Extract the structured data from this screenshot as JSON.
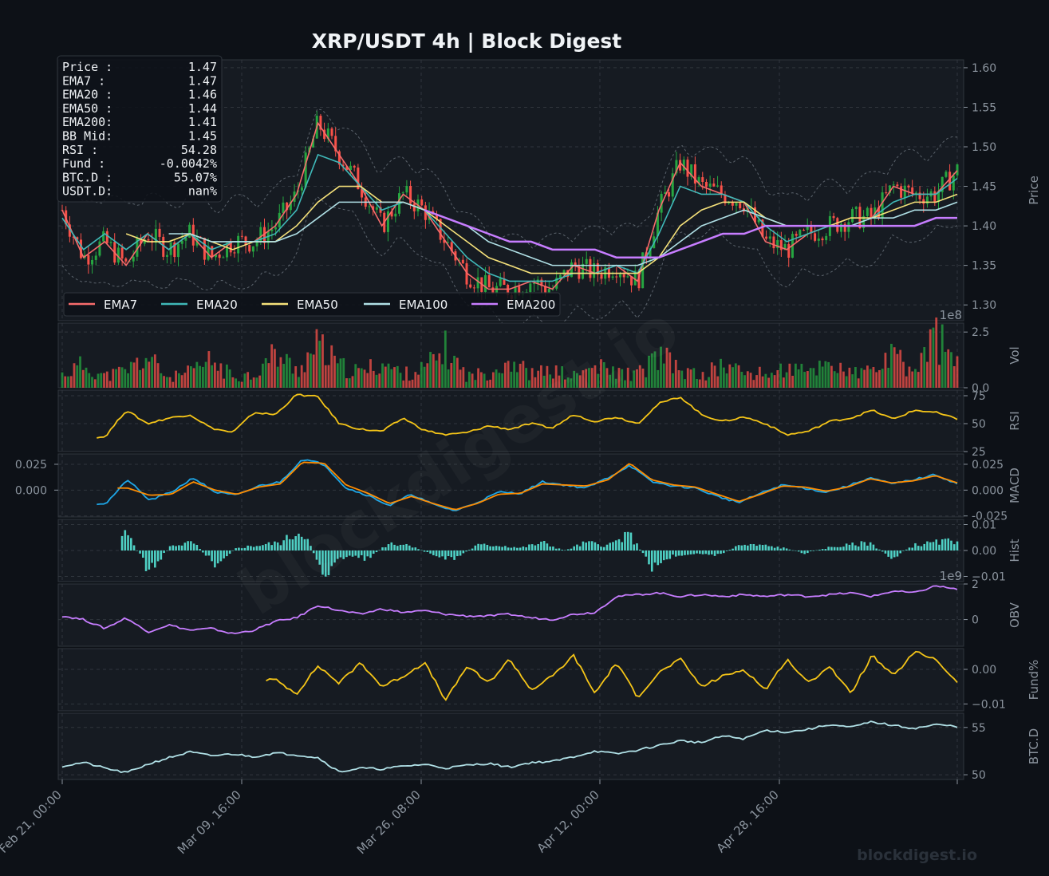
{
  "title": "XRP/USDT  4h  |  Block Digest",
  "watermark": "blockdigest.io",
  "footer_brand": "blockdigest.io",
  "colors": {
    "background": "#0d1117",
    "panel": "#161b22",
    "grid": "#30363d",
    "axis_text": "#8b949e",
    "up_candle": "#26a641",
    "down_candle": "#f85149",
    "ema7": "#f76c6c",
    "ema20": "#3fb8b8",
    "ema50": "#f5e17a",
    "ema100": "#b0e0e6",
    "ema200": "#c77dff",
    "rsi": "#f5c518",
    "macd": "#1ea7e8",
    "signal": "#ff8c00",
    "hist": "#4fd1c5",
    "obv": "#c77dff",
    "funding": "#f5c518",
    "btcd": "#b0e0e6"
  },
  "info_box": {
    "rows": [
      {
        "label": "Price :",
        "value": "1.47"
      },
      {
        "label": "EMA7  :",
        "value": "1.47"
      },
      {
        "label": "EMA20 :",
        "value": "1.46"
      },
      {
        "label": "EMA50 :",
        "value": "1.44"
      },
      {
        "label": "EMA200:",
        "value": "1.41"
      },
      {
        "label": "BB Mid:",
        "value": "1.45"
      },
      {
        "label": "RSI   :",
        "value": "54.28"
      },
      {
        "label": "Fund  :",
        "value": "-0.0042%"
      },
      {
        "label": "BTC.D :",
        "value": "55.07%"
      },
      {
        "label": "USDT.D:",
        "value": "nan%"
      }
    ]
  },
  "legend": {
    "location": "lower-left",
    "items": [
      {
        "label": "EMA7",
        "color": "#f76c6c"
      },
      {
        "label": "EMA20",
        "color": "#3fb8b8"
      },
      {
        "label": "EMA50",
        "color": "#f5e17a"
      },
      {
        "label": "EMA100",
        "color": "#b0e0e6"
      },
      {
        "label": "EMA200",
        "color": "#c77dff"
      }
    ]
  },
  "x_axis": {
    "type": "datetime",
    "tick_labels": [
      "Feb 21, 00:00",
      "Mar 09, 16:00",
      "Mar 26, 08:00",
      "Apr 12, 00:00",
      "Apr 28, 16:00"
    ],
    "grid": true
  },
  "chart_data": [
    {
      "type": "line",
      "panel": "price",
      "ylabel": "Price",
      "ylim": [
        1.28,
        1.61
      ],
      "y_ticks": [
        1.3,
        1.35,
        1.4,
        1.45,
        1.5,
        1.55,
        1.6
      ],
      "y_tick_labels": [
        "1.30",
        "1.35",
        "1.40",
        "1.45",
        "1.50",
        "1.55",
        "1.60"
      ],
      "candles": "OHLC candlesticks (4h)",
      "series": [
        {
          "name": "EMA7",
          "values": [
            1.42,
            1.36,
            1.38,
            1.35,
            1.39,
            1.37,
            1.39,
            1.36,
            1.38,
            1.38,
            1.4,
            1.44,
            1.53,
            1.49,
            1.45,
            1.4,
            1.44,
            1.42,
            1.38,
            1.34,
            1.32,
            1.32,
            1.33,
            1.32,
            1.35,
            1.34,
            1.35,
            1.33,
            1.42,
            1.48,
            1.45,
            1.44,
            1.43,
            1.38,
            1.37,
            1.39,
            1.4,
            1.41,
            1.41,
            1.45,
            1.44,
            1.44,
            1.47
          ]
        },
        {
          "name": "EMA20",
          "values": [
            1.41,
            1.37,
            1.39,
            1.37,
            1.39,
            1.37,
            1.39,
            1.37,
            1.38,
            1.38,
            1.39,
            1.42,
            1.49,
            1.48,
            1.45,
            1.42,
            1.43,
            1.42,
            1.39,
            1.36,
            1.34,
            1.33,
            1.33,
            1.33,
            1.34,
            1.34,
            1.35,
            1.34,
            1.39,
            1.45,
            1.44,
            1.44,
            1.43,
            1.4,
            1.38,
            1.39,
            1.4,
            1.4,
            1.41,
            1.43,
            1.44,
            1.44,
            1.46
          ]
        },
        {
          "name": "EMA50",
          "values": [
            null,
            null,
            null,
            1.39,
            1.38,
            1.38,
            1.39,
            1.38,
            1.37,
            1.38,
            1.38,
            1.4,
            1.43,
            1.45,
            1.45,
            1.43,
            1.43,
            1.42,
            1.4,
            1.38,
            1.36,
            1.35,
            1.34,
            1.34,
            1.34,
            1.34,
            1.34,
            1.34,
            1.36,
            1.4,
            1.42,
            1.43,
            1.43,
            1.41,
            1.4,
            1.4,
            1.4,
            1.41,
            1.41,
            1.42,
            1.43,
            1.43,
            1.44
          ]
        },
        {
          "name": "EMA100",
          "values": [
            null,
            null,
            null,
            null,
            null,
            1.39,
            1.39,
            1.38,
            1.38,
            1.38,
            1.38,
            1.39,
            1.41,
            1.43,
            1.43,
            1.43,
            1.43,
            1.42,
            1.41,
            1.4,
            1.38,
            1.37,
            1.36,
            1.35,
            1.35,
            1.35,
            1.35,
            1.35,
            1.36,
            1.38,
            1.4,
            1.41,
            1.42,
            1.41,
            1.4,
            1.4,
            1.4,
            1.4,
            1.41,
            1.41,
            1.42,
            1.42,
            1.43
          ]
        },
        {
          "name": "EMA200",
          "values": [
            null,
            null,
            null,
            null,
            null,
            null,
            null,
            null,
            null,
            null,
            null,
            null,
            null,
            null,
            null,
            null,
            null,
            1.42,
            1.41,
            1.4,
            1.39,
            1.38,
            1.38,
            1.37,
            1.37,
            1.37,
            1.36,
            1.36,
            1.36,
            1.37,
            1.38,
            1.39,
            1.39,
            1.4,
            1.4,
            1.4,
            1.4,
            1.4,
            1.4,
            1.4,
            1.4,
            1.41,
            1.41
          ]
        }
      ]
    },
    {
      "type": "bar",
      "panel": "volume",
      "ylabel": "Vol",
      "scale_label": "1e8",
      "ylim": [
        0,
        2.9
      ],
      "y_ticks": [
        0.0,
        2.5
      ],
      "y_tick_labels": [
        "0.0",
        "2.5"
      ],
      "values": [
        0.7,
        1.2,
        0.6,
        0.9,
        1.6,
        0.5,
        0.8,
        1.4,
        0.6,
        0.7,
        1.8,
        0.9,
        2.2,
        1.1,
        0.8,
        1.3,
        0.7,
        1.0,
        2.0,
        0.6,
        0.8,
        1.5,
        0.7,
        0.9,
        0.6,
        1.1,
        0.8,
        0.7,
        1.7,
        0.9,
        0.6,
        1.2,
        0.8,
        0.7,
        1.0,
        0.8,
        1.4,
        0.7,
        0.9,
        1.6,
        0.8,
        2.8,
        1.1
      ]
    },
    {
      "type": "line",
      "panel": "rsi",
      "ylabel": "RSI",
      "ylim": [
        25,
        80
      ],
      "y_ticks": [
        25,
        50,
        75
      ],
      "y_tick_labels": [
        "25",
        "50",
        "75"
      ],
      "series": [
        {
          "name": "RSI",
          "values": [
            null,
            null,
            38,
            62,
            50,
            55,
            58,
            46,
            42,
            60,
            58,
            76,
            74,
            50,
            45,
            43,
            55,
            44,
            40,
            42,
            48,
            45,
            50,
            46,
            58,
            52,
            56,
            50,
            68,
            74,
            58,
            52,
            56,
            50,
            40,
            43,
            52,
            55,
            62,
            54,
            62,
            60,
            54
          ]
        }
      ]
    },
    {
      "type": "line",
      "panel": "macd",
      "ylabel": "MACD",
      "ylim": [
        -0.026,
        0.035
      ],
      "y_ticks": [
        -0.025,
        0.0,
        0.025
      ],
      "y_tick_labels": [
        "-0.025",
        "0.000",
        "0.025"
      ],
      "left_y_tick_labels": [
        "0.000",
        "0.025"
      ],
      "series": [
        {
          "name": "MACD",
          "values": [
            null,
            null,
            -0.013,
            0.01,
            -0.01,
            -0.002,
            0.012,
            -0.002,
            -0.005,
            0.004,
            0.008,
            0.03,
            0.025,
            0.002,
            -0.005,
            -0.015,
            -0.004,
            -0.014,
            -0.02,
            -0.012,
            -0.002,
            -0.003,
            0.008,
            0.005,
            0.002,
            0.012,
            0.024,
            0.008,
            0.004,
            0.002,
            -0.006,
            -0.012,
            -0.003,
            0.005,
            0.002,
            -0.002,
            0.004,
            0.012,
            0.006,
            0.01,
            0.015,
            0.006
          ]
        },
        {
          "name": "Signal",
          "values": [
            null,
            null,
            null,
            0.002,
            -0.005,
            -0.004,
            0.008,
            0.0,
            -0.004,
            0.003,
            0.006,
            0.027,
            0.026,
            0.005,
            -0.003,
            -0.013,
            -0.006,
            -0.013,
            -0.019,
            -0.013,
            -0.004,
            -0.003,
            0.006,
            0.005,
            0.004,
            0.01,
            0.026,
            0.01,
            0.005,
            0.003,
            -0.004,
            -0.011,
            -0.004,
            0.004,
            0.003,
            -0.001,
            0.003,
            0.011,
            0.007,
            0.009,
            0.014,
            0.007
          ]
        }
      ]
    },
    {
      "type": "bar",
      "panel": "hist",
      "ylabel": "Hist",
      "ylim": [
        -0.012,
        0.012
      ],
      "y_ticks": [
        -0.01,
        0.0,
        0.01
      ],
      "y_tick_labels": [
        "−0.01",
        "0.00",
        "0.01"
      ],
      "values": [
        null,
        null,
        null,
        0.006,
        -0.008,
        0.002,
        0.003,
        -0.005,
        0.001,
        0.002,
        0.003,
        0.008,
        -0.009,
        -0.002,
        -0.003,
        0.003,
        0.002,
        -0.002,
        -0.003,
        0.002,
        0.002,
        0.001,
        0.003,
        0.0,
        0.003,
        0.002,
        0.006,
        -0.006,
        -0.002,
        -0.001,
        -0.002,
        0.002,
        0.002,
        0.001,
        -0.001,
        0.001,
        0.002,
        0.003,
        -0.003,
        0.002,
        0.003,
        0.004
      ]
    },
    {
      "type": "line",
      "panel": "obv",
      "ylabel": "OBV",
      "scale_label": "1e9",
      "ylim": [
        -1.5,
        2.0
      ],
      "y_ticks": [
        0,
        2
      ],
      "y_tick_labels": [
        "0",
        "2"
      ],
      "series": [
        {
          "name": "OBV",
          "values": [
            0.2,
            0.0,
            -0.5,
            0.1,
            -0.7,
            -0.3,
            -0.6,
            -0.5,
            -0.8,
            -0.6,
            -0.1,
            0.1,
            0.8,
            0.5,
            0.3,
            0.6,
            0.4,
            0.5,
            0.3,
            0.2,
            0.2,
            0.3,
            0.1,
            0.0,
            0.3,
            0.4,
            1.3,
            1.4,
            1.5,
            1.3,
            1.4,
            1.3,
            1.4,
            1.3,
            1.4,
            1.3,
            1.4,
            1.5,
            1.3,
            1.6,
            1.5,
            1.9,
            1.7
          ]
        }
      ]
    },
    {
      "type": "line",
      "panel": "funding",
      "ylabel": "Fund%",
      "ylim": [
        -0.012,
        0.006
      ],
      "y_ticks": [
        -0.01,
        0.0
      ],
      "y_tick_labels": [
        "−0.01",
        "0.00"
      ],
      "series": [
        {
          "name": "Funding",
          "values": [
            null,
            null,
            null,
            null,
            null,
            null,
            null,
            null,
            null,
            null,
            -0.003,
            -0.007,
            0.001,
            -0.004,
            0.002,
            -0.005,
            -0.002,
            0.002,
            -0.009,
            0.001,
            -0.004,
            0.003,
            -0.006,
            -0.002,
            0.004,
            -0.007,
            0.002,
            -0.008,
            -0.001,
            0.003,
            -0.005,
            -0.002,
            0.0,
            -0.006,
            0.003,
            -0.004,
            0.001,
            -0.007,
            0.004,
            -0.002,
            0.005,
            0.003,
            -0.004
          ]
        }
      ]
    },
    {
      "type": "line",
      "panel": "btcd",
      "ylabel": "BTC.D",
      "ylim": [
        49.5,
        56.5
      ],
      "y_ticks": [
        50,
        55
      ],
      "y_tick_labels": [
        "50",
        "55"
      ],
      "series": [
        {
          "name": "BTC.D",
          "values": [
            50.9,
            51.3,
            50.7,
            50.2,
            51.1,
            51.8,
            52.4,
            52.0,
            52.2,
            51.9,
            52.3,
            52.1,
            51.8,
            50.3,
            50.7,
            50.6,
            50.9,
            51.1,
            50.7,
            51.0,
            51.2,
            50.8,
            51.3,
            51.4,
            51.9,
            52.5,
            52.2,
            52.6,
            53.1,
            53.6,
            53.4,
            54.1,
            53.8,
            54.7,
            54.5,
            54.8,
            55.3,
            55.0,
            55.6,
            55.2,
            54.9,
            55.3,
            55.1
          ]
        }
      ]
    }
  ]
}
